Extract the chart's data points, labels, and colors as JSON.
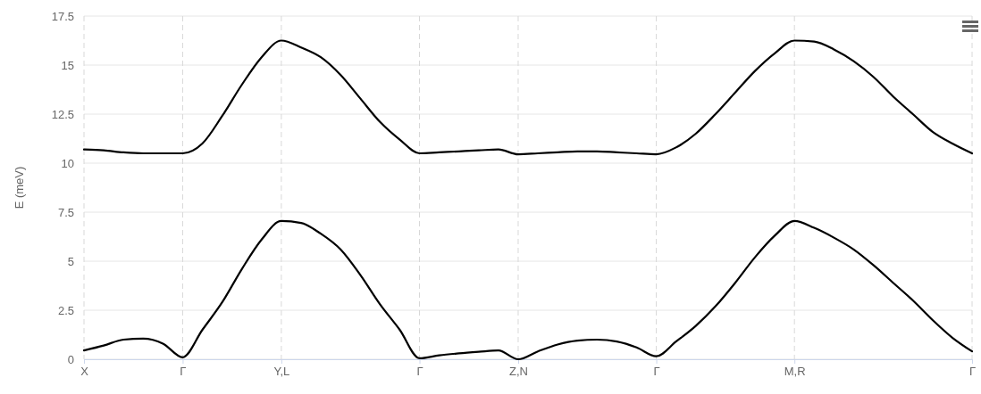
{
  "chart_data": {
    "type": "line",
    "ylabel": "E (meV)",
    "ylim": [
      0,
      17.5
    ],
    "categories": [
      "X",
      null,
      null,
      null,
      null,
      "Γ",
      null,
      null,
      null,
      null,
      "Y,L",
      null,
      null,
      null,
      null,
      null,
      null,
      "Γ",
      null,
      null,
      null,
      null,
      "Z,N",
      null,
      null,
      null,
      null,
      null,
      null,
      "Γ",
      null,
      null,
      null,
      null,
      null,
      null,
      "M,R",
      null,
      null,
      null,
      null,
      null,
      null,
      null,
      null,
      "Γ"
    ],
    "yticks": [
      0,
      2.5,
      5,
      7.5,
      10,
      12.5,
      15,
      17.5
    ],
    "grid": true,
    "marker": "none",
    "line_style": "solid",
    "series": [
      {
        "color": "#000000",
        "values": [
          0.45,
          0.7,
          1.0,
          1.05,
          0.8,
          0.1,
          1.5,
          2.9,
          4.6,
          6.1,
          7.05,
          6.95,
          6.4,
          5.6,
          4.3,
          2.8,
          1.5,
          0.05,
          0.2,
          0.3,
          0.38,
          0.45,
          0.0,
          0.4,
          0.75,
          0.95,
          1.0,
          0.9,
          0.6,
          0.15,
          0.9,
          1.7,
          2.7,
          3.9,
          5.2,
          6.3,
          7.05,
          6.7,
          6.2,
          5.6,
          4.8,
          3.9,
          3.0,
          2.0,
          1.1,
          0.4
        ]
      },
      {
        "color": "#000000",
        "values": [
          10.7,
          10.65,
          10.55,
          10.5,
          10.5,
          10.5,
          11.0,
          12.4,
          14.0,
          15.4,
          16.25,
          15.9,
          15.4,
          14.5,
          13.3,
          12.1,
          11.2,
          10.5,
          10.55,
          10.6,
          10.65,
          10.7,
          10.45,
          10.5,
          10.55,
          10.6,
          10.6,
          10.55,
          10.5,
          10.45,
          10.8,
          11.5,
          12.5,
          13.6,
          14.7,
          15.6,
          16.25,
          16.2,
          15.8,
          15.2,
          14.4,
          13.4,
          12.5,
          11.6,
          11.0,
          10.5
        ]
      }
    ]
  }
}
